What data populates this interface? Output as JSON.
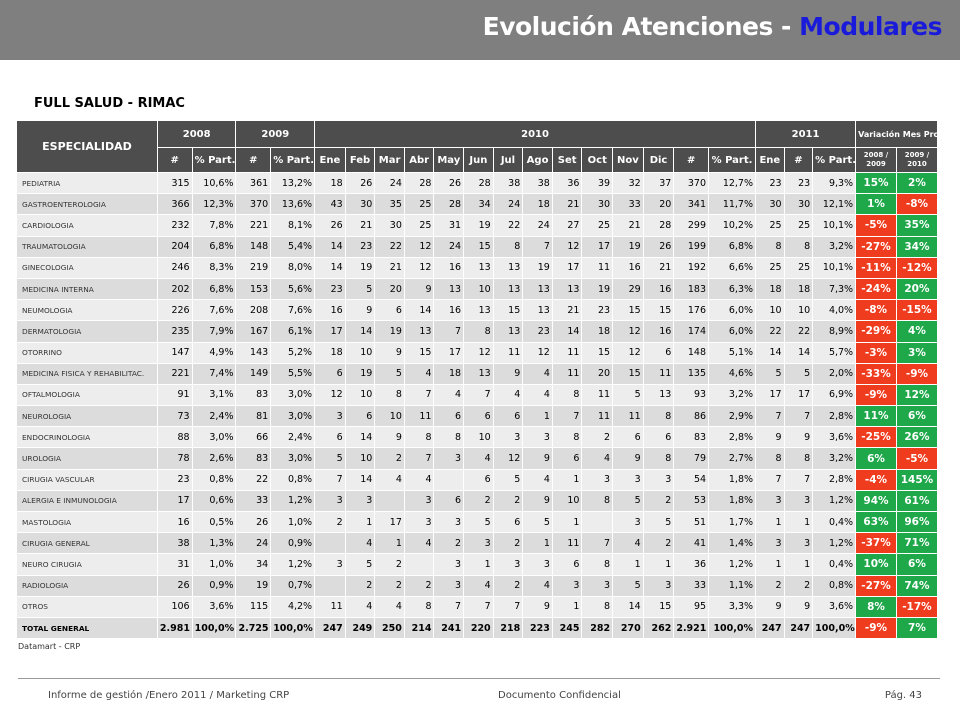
{
  "header": {
    "title_main": "Evolución Atenciones - ",
    "title_highlight": "Modulares"
  },
  "subtitle": "FULL SALUD - RIMAC",
  "colors": {
    "positive": "#1ea84a",
    "negative": "#f03c1e",
    "header_bg": "#4d4d4d",
    "banner": "#7f7f7f",
    "title_highlight": "#1a1adb"
  },
  "table": {
    "head": {
      "especialidad": "ESPECIALIDAD",
      "y2008": "2008",
      "y2009": "2009",
      "y2010": "2010",
      "y2011": "2011",
      "variacion": "Variación Mes Prom.",
      "num": "#",
      "part": "% Part.",
      "months": [
        "Ene",
        "Feb",
        "Mar",
        "Abr",
        "May",
        "Jun",
        "Jul",
        "Ago",
        "Set",
        "Oct",
        "Nov",
        "Dic"
      ],
      "v1_line1": "2008 /",
      "v1_line2": "2009",
      "v2_line1": "2009 /",
      "v2_line2": "2010"
    },
    "rows": [
      {
        "name": "PEDIATRIA",
        "c": [
          "315",
          "10,6%",
          "361",
          "13,2%",
          "18",
          "26",
          "24",
          "28",
          "26",
          "28",
          "38",
          "38",
          "36",
          "39",
          "32",
          "37",
          "370",
          "12,7%",
          "23",
          "23",
          "9,3%"
        ],
        "v": [
          "15%",
          "2%"
        ],
        "s": [
          "pos",
          "pos"
        ]
      },
      {
        "name": "GASTROENTEROLOGIA",
        "c": [
          "366",
          "12,3%",
          "370",
          "13,6%",
          "43",
          "30",
          "35",
          "25",
          "28",
          "34",
          "24",
          "18",
          "21",
          "30",
          "33",
          "20",
          "341",
          "11,7%",
          "30",
          "30",
          "12,1%"
        ],
        "v": [
          "1%",
          "-8%"
        ],
        "s": [
          "pos",
          "neg"
        ]
      },
      {
        "name": "CARDIOLOGIA",
        "c": [
          "232",
          "7,8%",
          "221",
          "8,1%",
          "26",
          "21",
          "30",
          "25",
          "31",
          "19",
          "22",
          "24",
          "27",
          "25",
          "21",
          "28",
          "299",
          "10,2%",
          "25",
          "25",
          "10,1%"
        ],
        "v": [
          "-5%",
          "35%"
        ],
        "s": [
          "neg",
          "pos"
        ]
      },
      {
        "name": "TRAUMATOLOGIA",
        "c": [
          "204",
          "6,8%",
          "148",
          "5,4%",
          "14",
          "23",
          "22",
          "12",
          "24",
          "15",
          "8",
          "7",
          "12",
          "17",
          "19",
          "26",
          "199",
          "6,8%",
          "8",
          "8",
          "3,2%"
        ],
        "v": [
          "-27%",
          "34%"
        ],
        "s": [
          "neg",
          "pos"
        ]
      },
      {
        "name": "GINECOLOGIA",
        "c": [
          "246",
          "8,3%",
          "219",
          "8,0%",
          "14",
          "19",
          "21",
          "12",
          "16",
          "13",
          "13",
          "19",
          "17",
          "11",
          "16",
          "21",
          "192",
          "6,6%",
          "25",
          "25",
          "10,1%"
        ],
        "v": [
          "-11%",
          "-12%"
        ],
        "s": [
          "neg",
          "neg"
        ]
      },
      {
        "name": "MEDICINA INTERNA",
        "c": [
          "202",
          "6,8%",
          "153",
          "5,6%",
          "23",
          "5",
          "20",
          "9",
          "13",
          "10",
          "13",
          "13",
          "13",
          "19",
          "29",
          "16",
          "183",
          "6,3%",
          "18",
          "18",
          "7,3%"
        ],
        "v": [
          "-24%",
          "20%"
        ],
        "s": [
          "neg",
          "pos"
        ]
      },
      {
        "name": "NEUMOLOGIA",
        "c": [
          "226",
          "7,6%",
          "208",
          "7,6%",
          "16",
          "9",
          "6",
          "14",
          "16",
          "13",
          "15",
          "13",
          "21",
          "23",
          "15",
          "15",
          "176",
          "6,0%",
          "10",
          "10",
          "4,0%"
        ],
        "v": [
          "-8%",
          "-15%"
        ],
        "s": [
          "neg",
          "neg"
        ]
      },
      {
        "name": "DERMATOLOGIA",
        "c": [
          "235",
          "7,9%",
          "167",
          "6,1%",
          "17",
          "14",
          "19",
          "13",
          "7",
          "8",
          "13",
          "23",
          "14",
          "18",
          "12",
          "16",
          "174",
          "6,0%",
          "22",
          "22",
          "8,9%"
        ],
        "v": [
          "-29%",
          "4%"
        ],
        "s": [
          "neg",
          "pos"
        ]
      },
      {
        "name": "OTORRINO",
        "c": [
          "147",
          "4,9%",
          "143",
          "5,2%",
          "18",
          "10",
          "9",
          "15",
          "17",
          "12",
          "11",
          "12",
          "11",
          "15",
          "12",
          "6",
          "148",
          "5,1%",
          "14",
          "14",
          "5,7%"
        ],
        "v": [
          "-3%",
          "3%"
        ],
        "s": [
          "neg",
          "pos"
        ]
      },
      {
        "name": "MEDICINA FISICA Y REHABILITAC.",
        "c": [
          "221",
          "7,4%",
          "149",
          "5,5%",
          "6",
          "19",
          "5",
          "4",
          "18",
          "13",
          "9",
          "4",
          "11",
          "20",
          "15",
          "11",
          "135",
          "4,6%",
          "5",
          "5",
          "2,0%"
        ],
        "v": [
          "-33%",
          "-9%"
        ],
        "s": [
          "neg",
          "neg"
        ]
      },
      {
        "name": "OFTALMOLOGIA",
        "c": [
          "91",
          "3,1%",
          "83",
          "3,0%",
          "12",
          "10",
          "8",
          "7",
          "4",
          "7",
          "4",
          "4",
          "8",
          "11",
          "5",
          "13",
          "93",
          "3,2%",
          "17",
          "17",
          "6,9%"
        ],
        "v": [
          "-9%",
          "12%"
        ],
        "s": [
          "neg",
          "pos"
        ]
      },
      {
        "name": "NEUROLOGIA",
        "c": [
          "73",
          "2,4%",
          "81",
          "3,0%",
          "3",
          "6",
          "10",
          "11",
          "6",
          "6",
          "6",
          "1",
          "7",
          "11",
          "11",
          "8",
          "86",
          "2,9%",
          "7",
          "7",
          "2,8%"
        ],
        "v": [
          "11%",
          "6%"
        ],
        "s": [
          "pos",
          "pos"
        ]
      },
      {
        "name": "ENDOCRINOLOGIA",
        "c": [
          "88",
          "3,0%",
          "66",
          "2,4%",
          "6",
          "14",
          "9",
          "8",
          "8",
          "10",
          "3",
          "3",
          "8",
          "2",
          "6",
          "6",
          "83",
          "2,8%",
          "9",
          "9",
          "3,6%"
        ],
        "v": [
          "-25%",
          "26%"
        ],
        "s": [
          "neg",
          "pos"
        ]
      },
      {
        "name": "UROLOGIA",
        "c": [
          "78",
          "2,6%",
          "83",
          "3,0%",
          "5",
          "10",
          "2",
          "7",
          "3",
          "4",
          "12",
          "9",
          "6",
          "4",
          "9",
          "8",
          "79",
          "2,7%",
          "8",
          "8",
          "3,2%"
        ],
        "v": [
          "6%",
          "-5%"
        ],
        "s": [
          "pos",
          "neg"
        ]
      },
      {
        "name": "CIRUGIA VASCULAR",
        "c": [
          "23",
          "0,8%",
          "22",
          "0,8%",
          "7",
          "14",
          "4",
          "4",
          "",
          "6",
          "5",
          "4",
          "1",
          "3",
          "3",
          "3",
          "54",
          "1,8%",
          "7",
          "7",
          "2,8%"
        ],
        "v": [
          "-4%",
          "145%"
        ],
        "s": [
          "neg",
          "pos"
        ]
      },
      {
        "name": "ALERGIA E INMUNOLOGIA",
        "c": [
          "17",
          "0,6%",
          "33",
          "1,2%",
          "3",
          "3",
          "",
          "3",
          "6",
          "2",
          "2",
          "9",
          "10",
          "8",
          "5",
          "2",
          "53",
          "1,8%",
          "3",
          "3",
          "1,2%"
        ],
        "v": [
          "94%",
          "61%"
        ],
        "s": [
          "pos",
          "pos"
        ]
      },
      {
        "name": "MASTOLOGIA",
        "c": [
          "16",
          "0,5%",
          "26",
          "1,0%",
          "2",
          "1",
          "17",
          "3",
          "3",
          "5",
          "6",
          "5",
          "1",
          "",
          "3",
          "5",
          "51",
          "1,7%",
          "1",
          "1",
          "0,4%"
        ],
        "v": [
          "63%",
          "96%"
        ],
        "s": [
          "pos",
          "pos"
        ]
      },
      {
        "name": "CIRUGIA GENERAL",
        "c": [
          "38",
          "1,3%",
          "24",
          "0,9%",
          "",
          "4",
          "1",
          "4",
          "2",
          "3",
          "2",
          "1",
          "11",
          "7",
          "4",
          "2",
          "41",
          "1,4%",
          "3",
          "3",
          "1,2%"
        ],
        "v": [
          "-37%",
          "71%"
        ],
        "s": [
          "neg",
          "pos"
        ]
      },
      {
        "name": "NEURO CIRUGIA",
        "c": [
          "31",
          "1,0%",
          "34",
          "1,2%",
          "3",
          "5",
          "2",
          "",
          "3",
          "1",
          "3",
          "3",
          "6",
          "8",
          "1",
          "1",
          "36",
          "1,2%",
          "1",
          "1",
          "0,4%"
        ],
        "v": [
          "10%",
          "6%"
        ],
        "s": [
          "pos",
          "pos"
        ]
      },
      {
        "name": "RADIOLOGIA",
        "c": [
          "26",
          "0,9%",
          "19",
          "0,7%",
          "",
          "2",
          "2",
          "2",
          "3",
          "4",
          "2",
          "4",
          "3",
          "3",
          "5",
          "3",
          "33",
          "1,1%",
          "2",
          "2",
          "0,8%"
        ],
        "v": [
          "-27%",
          "74%"
        ],
        "s": [
          "neg",
          "pos"
        ]
      },
      {
        "name": "OTROS",
        "c": [
          "106",
          "3,6%",
          "115",
          "4,2%",
          "11",
          "4",
          "4",
          "8",
          "7",
          "7",
          "7",
          "9",
          "1",
          "8",
          "14",
          "15",
          "95",
          "3,3%",
          "9",
          "9",
          "3,6%"
        ],
        "v": [
          "8%",
          "-17%"
        ],
        "s": [
          "pos",
          "neg"
        ]
      },
      {
        "name": "TOTAL GENERAL",
        "c": [
          "2.981",
          "100,0%",
          "2.725",
          "100,0%",
          "247",
          "249",
          "250",
          "214",
          "241",
          "220",
          "218",
          "223",
          "245",
          "282",
          "270",
          "262",
          "2.921",
          "100,0%",
          "247",
          "247",
          "100,0%"
        ],
        "v": [
          "-9%",
          "7%"
        ],
        "s": [
          "neg",
          "pos"
        ],
        "total": true
      }
    ]
  },
  "source": "Datamart - CRP",
  "footer": {
    "left": "Informe de gestión /Enero 2011 / Marketing CRP",
    "center": "Documento Confidencial",
    "right": "Pág. 43"
  }
}
